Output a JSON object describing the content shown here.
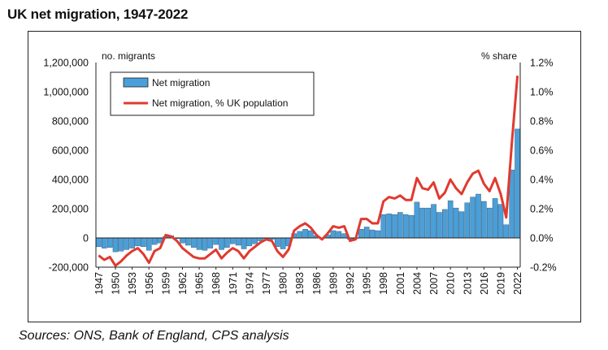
{
  "title": "UK net migration, 1947-2022",
  "source": "Sources: ONS, Bank of England, CPS analysis",
  "chart_data": {
    "type": "bar",
    "title": "UK net migration, 1947-2022",
    "ylabel": "no. migrants",
    "y2label": "% share",
    "ylim": [
      -200000,
      1200000
    ],
    "y2lim": [
      -0.2,
      1.2
    ],
    "yticks": [
      "1,200,000",
      "1,000,000",
      "800,000",
      "600,000",
      "400,000",
      "200,000",
      "0",
      "-200,000"
    ],
    "y2ticks": [
      "1.2%",
      "1.0%",
      "0.8%",
      "0.6%",
      "0.4%",
      "0.2%",
      "0.0%",
      "-0.2%"
    ],
    "xticks": [
      "1947",
      "1950",
      "1953",
      "1956",
      "1959",
      "1962",
      "1965",
      "1968",
      "1971",
      "1974",
      "1977",
      "1980",
      "1983",
      "1986",
      "1989",
      "1992",
      "1995",
      "1998",
      "2001",
      "2004",
      "2007",
      "2010",
      "2013",
      "2016",
      "2019",
      "2022"
    ],
    "legend_position": "top-left",
    "grid": false,
    "colors": {
      "bar": "#4a9fd8",
      "line": "#e03a2f"
    },
    "series": [
      {
        "name": "Net migration",
        "type": "bar",
        "axis": "left",
        "x": [
          1947,
          1948,
          1949,
          1950,
          1951,
          1952,
          1953,
          1954,
          1955,
          1956,
          1957,
          1958,
          1959,
          1960,
          1961,
          1962,
          1963,
          1964,
          1965,
          1966,
          1967,
          1968,
          1969,
          1970,
          1971,
          1972,
          1973,
          1974,
          1975,
          1976,
          1977,
          1978,
          1979,
          1980,
          1981,
          1982,
          1983,
          1984,
          1985,
          1986,
          1987,
          1988,
          1989,
          1990,
          1991,
          1992,
          1993,
          1994,
          1995,
          1996,
          1997,
          1998,
          1999,
          2000,
          2001,
          2002,
          2003,
          2004,
          2005,
          2006,
          2007,
          2008,
          2009,
          2010,
          2011,
          2012,
          2013,
          2014,
          2015,
          2016,
          2017,
          2018,
          2019,
          2020,
          2021,
          2022
        ],
        "values": [
          -60000,
          -70000,
          -65000,
          -95000,
          -90000,
          -80000,
          -70000,
          -55000,
          -60000,
          -85000,
          -45000,
          -35000,
          10000,
          15000,
          -5000,
          -35000,
          -50000,
          -65000,
          -80000,
          -85000,
          -70000,
          -45000,
          -80000,
          -65000,
          -40000,
          -50000,
          -75000,
          -55000,
          -40000,
          -20000,
          -5000,
          -10000,
          -60000,
          -75000,
          -55000,
          30000,
          45000,
          60000,
          50000,
          15000,
          -5000,
          20000,
          50000,
          45000,
          30000,
          -10000,
          -5000,
          60000,
          75000,
          55000,
          50000,
          160000,
          165000,
          160000,
          175000,
          160000,
          155000,
          245000,
          205000,
          205000,
          230000,
          175000,
          195000,
          255000,
          205000,
          180000,
          240000,
          280000,
          300000,
          250000,
          205000,
          270000,
          230000,
          90000,
          465000,
          745000
        ]
      },
      {
        "name": "Net migration, % UK population",
        "type": "line",
        "axis": "right",
        "x": [
          1947,
          1948,
          1949,
          1950,
          1951,
          1952,
          1953,
          1954,
          1955,
          1956,
          1957,
          1958,
          1959,
          1960,
          1961,
          1962,
          1963,
          1964,
          1965,
          1966,
          1967,
          1968,
          1969,
          1970,
          1971,
          1972,
          1973,
          1974,
          1975,
          1976,
          1977,
          1978,
          1979,
          1980,
          1981,
          1982,
          1983,
          1984,
          1985,
          1986,
          1987,
          1988,
          1989,
          1990,
          1991,
          1992,
          1993,
          1994,
          1995,
          1996,
          1997,
          1998,
          1999,
          2000,
          2001,
          2002,
          2003,
          2004,
          2005,
          2006,
          2007,
          2008,
          2009,
          2010,
          2011,
          2012,
          2013,
          2014,
          2015,
          2016,
          2017,
          2018,
          2019,
          2020,
          2021,
          2022
        ],
        "values": [
          -0.12,
          -0.15,
          -0.13,
          -0.19,
          -0.16,
          -0.12,
          -0.09,
          -0.07,
          -0.11,
          -0.17,
          -0.09,
          -0.07,
          0.02,
          0.01,
          -0.02,
          -0.07,
          -0.1,
          -0.13,
          -0.14,
          -0.14,
          -0.11,
          -0.08,
          -0.14,
          -0.1,
          -0.07,
          -0.09,
          -0.14,
          -0.09,
          -0.06,
          -0.03,
          -0.01,
          -0.02,
          -0.09,
          -0.13,
          -0.08,
          0.05,
          0.08,
          0.1,
          0.07,
          0.02,
          -0.01,
          0.03,
          0.08,
          0.07,
          0.08,
          -0.02,
          -0.01,
          0.13,
          0.13,
          0.1,
          0.1,
          0.25,
          0.28,
          0.27,
          0.29,
          0.26,
          0.26,
          0.41,
          0.34,
          0.33,
          0.38,
          0.27,
          0.31,
          0.4,
          0.34,
          0.3,
          0.38,
          0.44,
          0.46,
          0.37,
          0.32,
          0.41,
          0.3,
          0.14,
          0.65,
          1.11
        ]
      }
    ]
  }
}
